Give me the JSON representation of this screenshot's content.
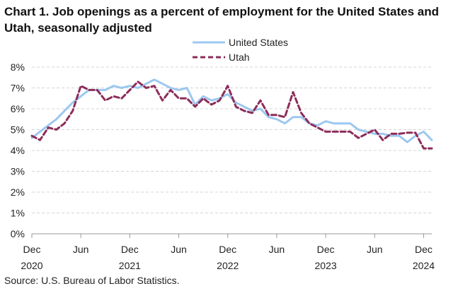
{
  "chart_data": {
    "type": "line",
    "title": "Chart 1. Job openings as a percent of employment for the United States and Utah, seasonally adjusted",
    "xlabel": "",
    "ylabel": "",
    "ylim": [
      0,
      8
    ],
    "yticks": [
      "0%",
      "1%",
      "2%",
      "3%",
      "4%",
      "5%",
      "6%",
      "7%",
      "8%"
    ],
    "xticks": [
      {
        "index": 0,
        "month": "Dec",
        "year": "2020"
      },
      {
        "index": 6,
        "month": "Jun",
        "year": ""
      },
      {
        "index": 12,
        "month": "Dec",
        "year": "2021"
      },
      {
        "index": 18,
        "month": "Jun",
        "year": ""
      },
      {
        "index": 24,
        "month": "Dec",
        "year": "2022"
      },
      {
        "index": 30,
        "month": "Jun",
        "year": ""
      },
      {
        "index": 36,
        "month": "Dec",
        "year": "2023"
      },
      {
        "index": 42,
        "month": "Jun",
        "year": ""
      },
      {
        "index": 48,
        "month": "Dec",
        "year": "2024"
      }
    ],
    "grid": true,
    "legend_position": "top-center",
    "series": [
      {
        "name": "United States",
        "color": "#9cc8f0",
        "style": "solid",
        "values": [
          4.6,
          4.9,
          5.2,
          5.5,
          5.9,
          6.3,
          6.6,
          6.9,
          6.9,
          6.9,
          7.1,
          7.0,
          7.1,
          7.0,
          7.2,
          7.4,
          7.2,
          7.0,
          6.9,
          7.0,
          6.2,
          6.6,
          6.4,
          6.5,
          6.7,
          6.3,
          6.1,
          5.9,
          6.0,
          5.6,
          5.5,
          5.3,
          5.6,
          5.6,
          5.3,
          5.2,
          5.4,
          5.3,
          5.3,
          5.3,
          5.0,
          4.9,
          4.8,
          4.8,
          4.7,
          4.7,
          4.4,
          4.7,
          4.9,
          4.5
        ]
      },
      {
        "name": "Utah",
        "color": "#8c2d5a",
        "style": "dashed",
        "values": [
          4.7,
          4.5,
          5.1,
          5.0,
          5.3,
          5.9,
          7.1,
          6.9,
          6.9,
          6.4,
          6.6,
          6.5,
          6.9,
          7.3,
          7.0,
          7.1,
          6.4,
          6.9,
          6.5,
          6.5,
          6.1,
          6.5,
          6.2,
          6.4,
          7.1,
          6.1,
          5.9,
          5.8,
          6.4,
          5.7,
          5.7,
          5.6,
          6.8,
          5.8,
          5.3,
          5.1,
          4.9,
          4.9,
          4.9,
          4.9,
          4.6,
          4.8,
          5.0,
          4.5,
          4.8,
          4.8,
          4.85,
          4.85,
          4.1,
          4.1
        ]
      }
    ],
    "source": "Source: U.S. Bureau of Labor Statistics."
  }
}
